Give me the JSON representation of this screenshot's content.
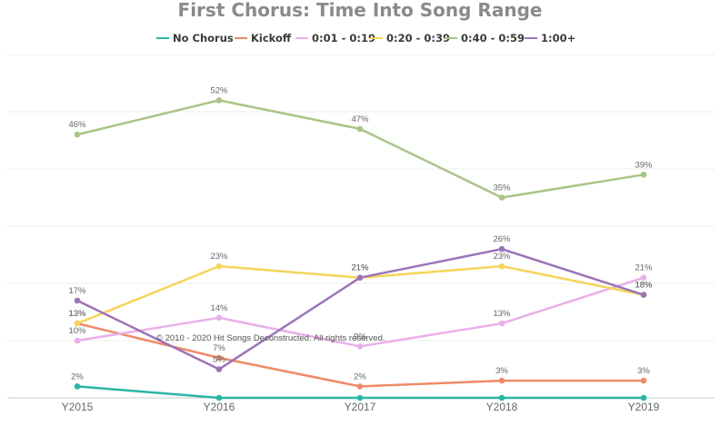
{
  "chart_data": {
    "type": "line",
    "title": "First Chorus: Time Into Song Range",
    "xlabel": "",
    "ylabel": "",
    "categories": [
      "Y2015",
      "Y2016",
      "Y2017",
      "Y2018",
      "Y2019"
    ],
    "ylim": [
      0,
      60
    ],
    "grid": true,
    "legend_position": "top",
    "value_suffix": "%",
    "series": [
      {
        "name": "No Chorus",
        "color": "#2bb5a6",
        "values": [
          2,
          0,
          0,
          0,
          0
        ],
        "labels": [
          "2%",
          null,
          null,
          null,
          null
        ]
      },
      {
        "name": "Kickoff",
        "color": "#ef8a68",
        "values": [
          13,
          7,
          2,
          3,
          3
        ],
        "labels": [
          "13%",
          "7%",
          "2%",
          "3%",
          "3%"
        ]
      },
      {
        "name": "0:01 - 0:19",
        "color": "#e8b0e8",
        "values": [
          10,
          14,
          9,
          13,
          21
        ],
        "labels": [
          "10%",
          "14%",
          "9%",
          "13%",
          "21%"
        ]
      },
      {
        "name": "0:20 - 0:39",
        "color": "#f5d55a",
        "values": [
          13,
          23,
          21,
          23,
          18
        ],
        "labels": [
          "13%",
          "23%",
          "21%",
          "23%",
          "18%"
        ]
      },
      {
        "name": "0:40 - 0:59",
        "color": "#a8c585",
        "values": [
          46,
          52,
          47,
          35,
          39
        ],
        "labels": [
          "46%",
          "52%",
          "47%",
          "35%",
          "39%"
        ]
      },
      {
        "name": "1:00+",
        "color": "#9b74b8",
        "values": [
          17,
          5,
          21,
          26,
          18
        ],
        "labels": [
          "17%",
          "5%",
          "21%",
          "26%",
          "18%"
        ]
      }
    ],
    "annotations": [
      "© 2010 - 2020 Hit Songs Deconstructed. All rights reserved."
    ]
  }
}
